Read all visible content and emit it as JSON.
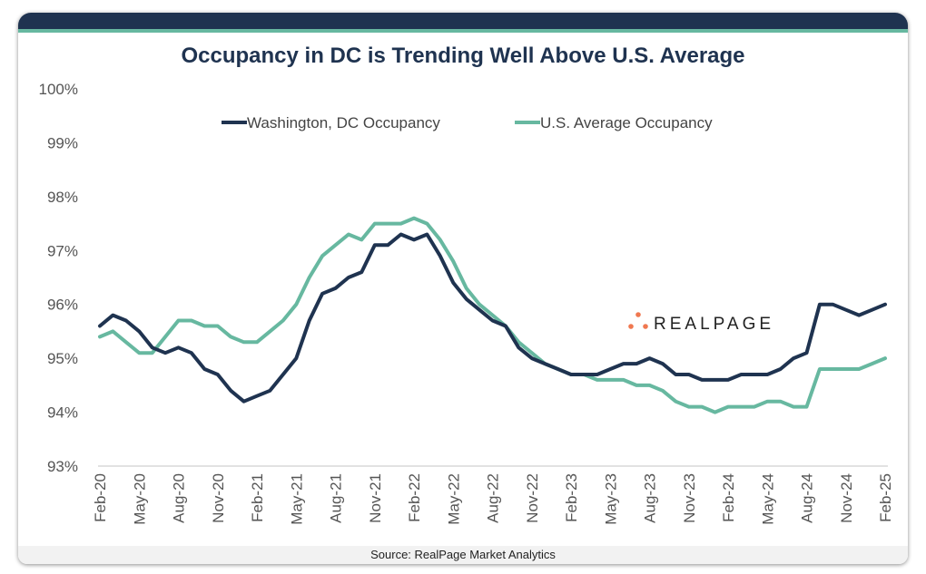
{
  "chart_data": {
    "type": "line",
    "title": "Occupancy in DC is Trending Well Above U.S. Average",
    "source": "Source: RealPage Market Analytics",
    "logo_text": "REALPAGE",
    "xlabel": "",
    "ylabel": "",
    "x_tick_labels": [
      "Feb-20",
      "May-20",
      "Aug-20",
      "Nov-20",
      "Feb-21",
      "May-21",
      "Aug-21",
      "Nov-21",
      "Feb-22",
      "May-22",
      "Aug-22",
      "Nov-22",
      "Feb-23",
      "May-23",
      "Aug-23",
      "Nov-23",
      "Feb-24",
      "May-24",
      "Aug-24",
      "Nov-24",
      "Feb-25"
    ],
    "x_start": "Feb-20",
    "x_end": "Feb-25",
    "x_frequency": "monthly",
    "y_tick_labels": [
      "100%",
      "99%",
      "98%",
      "97%",
      "96%",
      "95%",
      "94%",
      "93%"
    ],
    "ylim": [
      93,
      100
    ],
    "grid": false,
    "legend_position": "top",
    "series": [
      {
        "name": "Washington, DC Occupancy",
        "color": "#1f3350",
        "values": [
          95.6,
          95.8,
          95.7,
          95.5,
          95.2,
          95.1,
          95.2,
          95.1,
          94.8,
          94.7,
          94.4,
          94.2,
          94.3,
          94.4,
          94.7,
          95.0,
          95.7,
          96.2,
          96.3,
          96.5,
          96.6,
          97.1,
          97.1,
          97.3,
          97.2,
          97.3,
          96.9,
          96.4,
          96.1,
          95.9,
          95.7,
          95.6,
          95.2,
          95.0,
          94.9,
          94.8,
          94.7,
          94.7,
          94.7,
          94.8,
          94.9,
          94.9,
          95.0,
          94.9,
          94.7,
          94.7,
          94.6,
          94.6,
          94.6,
          94.7,
          94.7,
          94.7,
          94.8,
          95.0,
          95.1,
          96.0,
          96.0,
          95.9,
          95.8,
          95.9,
          96.0
        ]
      },
      {
        "name": "U.S. Average Occupancy",
        "color": "#67b8a0",
        "values": [
          95.4,
          95.5,
          95.3,
          95.1,
          95.1,
          95.4,
          95.7,
          95.7,
          95.6,
          95.6,
          95.4,
          95.3,
          95.3,
          95.5,
          95.7,
          96.0,
          96.5,
          96.9,
          97.1,
          97.3,
          97.2,
          97.5,
          97.5,
          97.5,
          97.6,
          97.5,
          97.2,
          96.8,
          96.3,
          96.0,
          95.8,
          95.6,
          95.3,
          95.1,
          94.9,
          94.8,
          94.7,
          94.7,
          94.6,
          94.6,
          94.6,
          94.5,
          94.5,
          94.4,
          94.2,
          94.1,
          94.1,
          94.0,
          94.1,
          94.1,
          94.1,
          94.2,
          94.2,
          94.1,
          94.1,
          94.8,
          94.8,
          94.8,
          94.8,
          94.9,
          95.0
        ]
      }
    ],
    "logo_dot_color": "#f07850"
  }
}
